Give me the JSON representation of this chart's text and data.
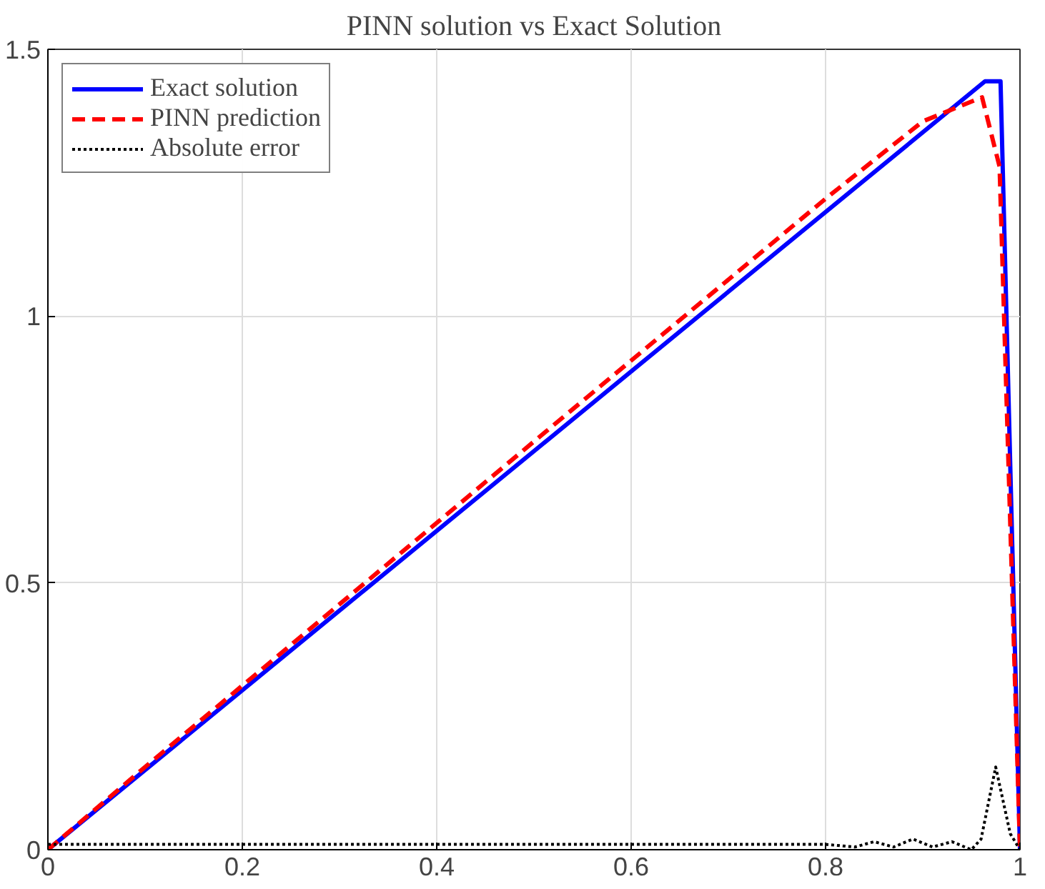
{
  "chart_data": {
    "type": "line",
    "title": "PINN solution vs Exact Solution",
    "xlim": [
      0,
      1
    ],
    "ylim": [
      0,
      1.5
    ],
    "xticks": [
      0,
      0.2,
      0.4,
      0.6,
      0.8,
      1
    ],
    "yticks": [
      0,
      0.5,
      1,
      1.5
    ],
    "grid": true,
    "legend": "top left",
    "series": [
      {
        "name": "Exact solution",
        "color": "#0000ff",
        "line_style": "solid",
        "x": [
          0,
          0.964,
          0.98,
          1
        ],
        "values": [
          0,
          1.44,
          1.44,
          0
        ]
      },
      {
        "name": "PINN prediction",
        "color": "#ff0000",
        "line_style": "dashed",
        "x": [
          0,
          0.1,
          0.5,
          0.8,
          0.9,
          0.961,
          0.979,
          1
        ],
        "values": [
          0,
          0.155,
          0.765,
          1.22,
          1.365,
          1.41,
          1.28,
          0
        ]
      },
      {
        "name": "Absolute error",
        "color": "#000000",
        "line_style": "dotted",
        "x": [
          0,
          0.8,
          0.83,
          0.85,
          0.87,
          0.89,
          0.91,
          0.93,
          0.95,
          0.96,
          0.975,
          0.99,
          1
        ],
        "values": [
          0.01,
          0.01,
          0.005,
          0.015,
          0.005,
          0.02,
          0.005,
          0.015,
          0.0,
          0.02,
          0.155,
          0.03,
          0
        ]
      }
    ]
  }
}
